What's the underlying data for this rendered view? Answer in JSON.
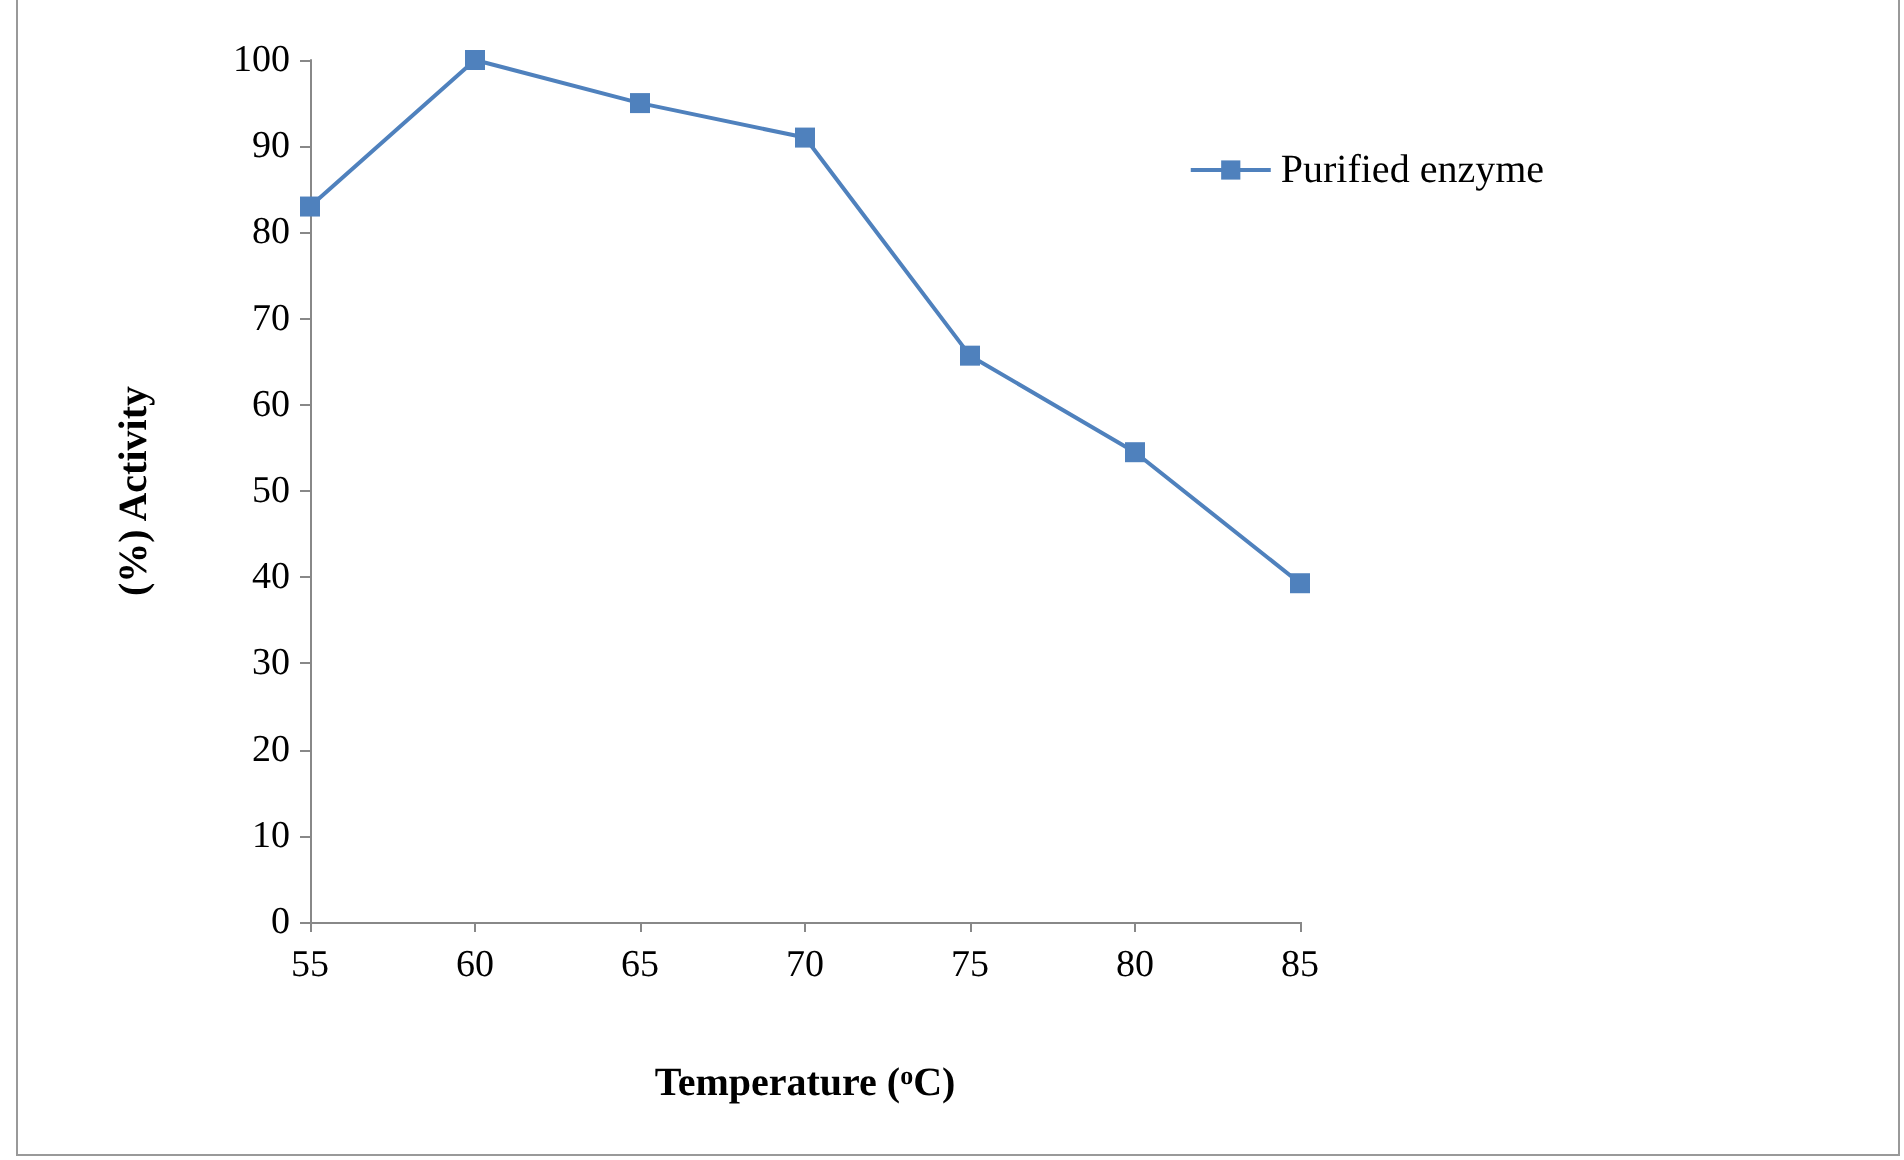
{
  "chart_data": {
    "type": "line",
    "xlabel": "Temperature ($^{o}$C)",
    "ylabel": "(%) Activity",
    "x": [
      55,
      60,
      65,
      70,
      75,
      80,
      85
    ],
    "series": [
      {
        "name": "Purified enzyme",
        "color": "#4f81bd",
        "values": [
          83,
          100,
          95,
          91,
          65.7,
          54.5,
          39.3
        ]
      }
    ],
    "xlim": [
      55,
      85
    ],
    "xticks": [
      55,
      60,
      65,
      70,
      75,
      80,
      85
    ],
    "ylim": [
      0,
      100
    ],
    "yticks": [
      0,
      10,
      20,
      30,
      40,
      50,
      60,
      70,
      80,
      90,
      100
    ],
    "grid": false,
    "legend": "top right",
    "marker": "square",
    "line_style": "solid"
  }
}
